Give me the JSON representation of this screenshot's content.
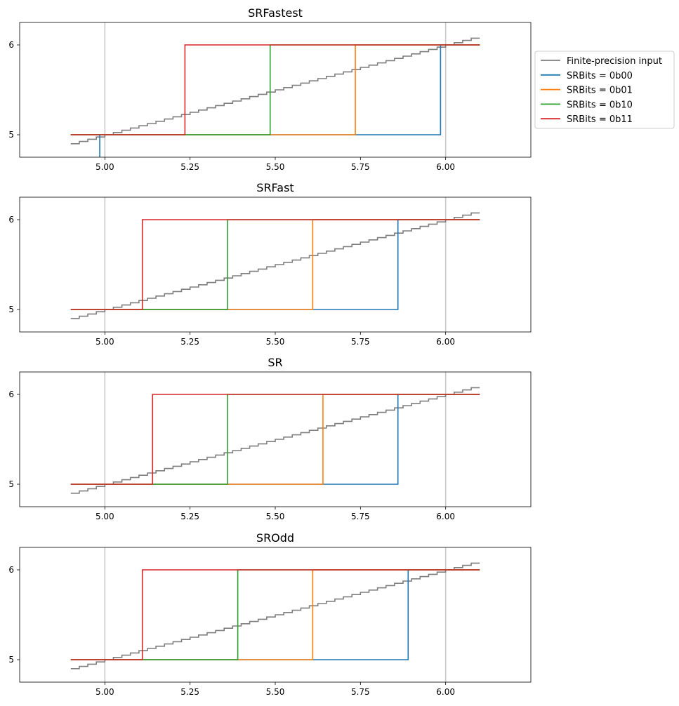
{
  "chart_data": {
    "type": "line",
    "xlim": [
      4.75,
      6.25
    ],
    "ylim": [
      4.75,
      6.25
    ],
    "xticks": [
      "5.00",
      "5.25",
      "5.50",
      "5.75",
      "6.00"
    ],
    "yticks": [
      "5",
      "6"
    ],
    "vlines": [
      5.0,
      6.0
    ],
    "input_range": [
      4.9,
      6.1
    ],
    "input_steps": 48,
    "legend": {
      "entries": [
        "Finite-precision input",
        "SRBits = 0b00",
        "SRBits = 0b01",
        "SRBits = 0b10",
        "SRBits = 0b11"
      ],
      "colors": [
        "#7f7f7f",
        "#1f77b4",
        "#ff7f0e",
        "#2ca02c",
        "#d62728"
      ],
      "placement": "right of top panel"
    },
    "panels": [
      {
        "title": "SRFastest",
        "thresholds": [
          5.985,
          5.735,
          5.485,
          5.235
        ],
        "extra": [
          {
            "series": 0,
            "x": 4.985,
            "y_from": 4.75,
            "y_to": 5.0
          }
        ]
      },
      {
        "title": "SRFast",
        "thresholds": [
          5.86,
          5.61,
          5.36,
          5.11
        ]
      },
      {
        "title": "SR",
        "thresholds": [
          5.86,
          5.64,
          5.36,
          5.14
        ]
      },
      {
        "title": "SROdd",
        "thresholds": [
          5.89,
          5.61,
          5.39,
          5.11
        ]
      }
    ]
  }
}
